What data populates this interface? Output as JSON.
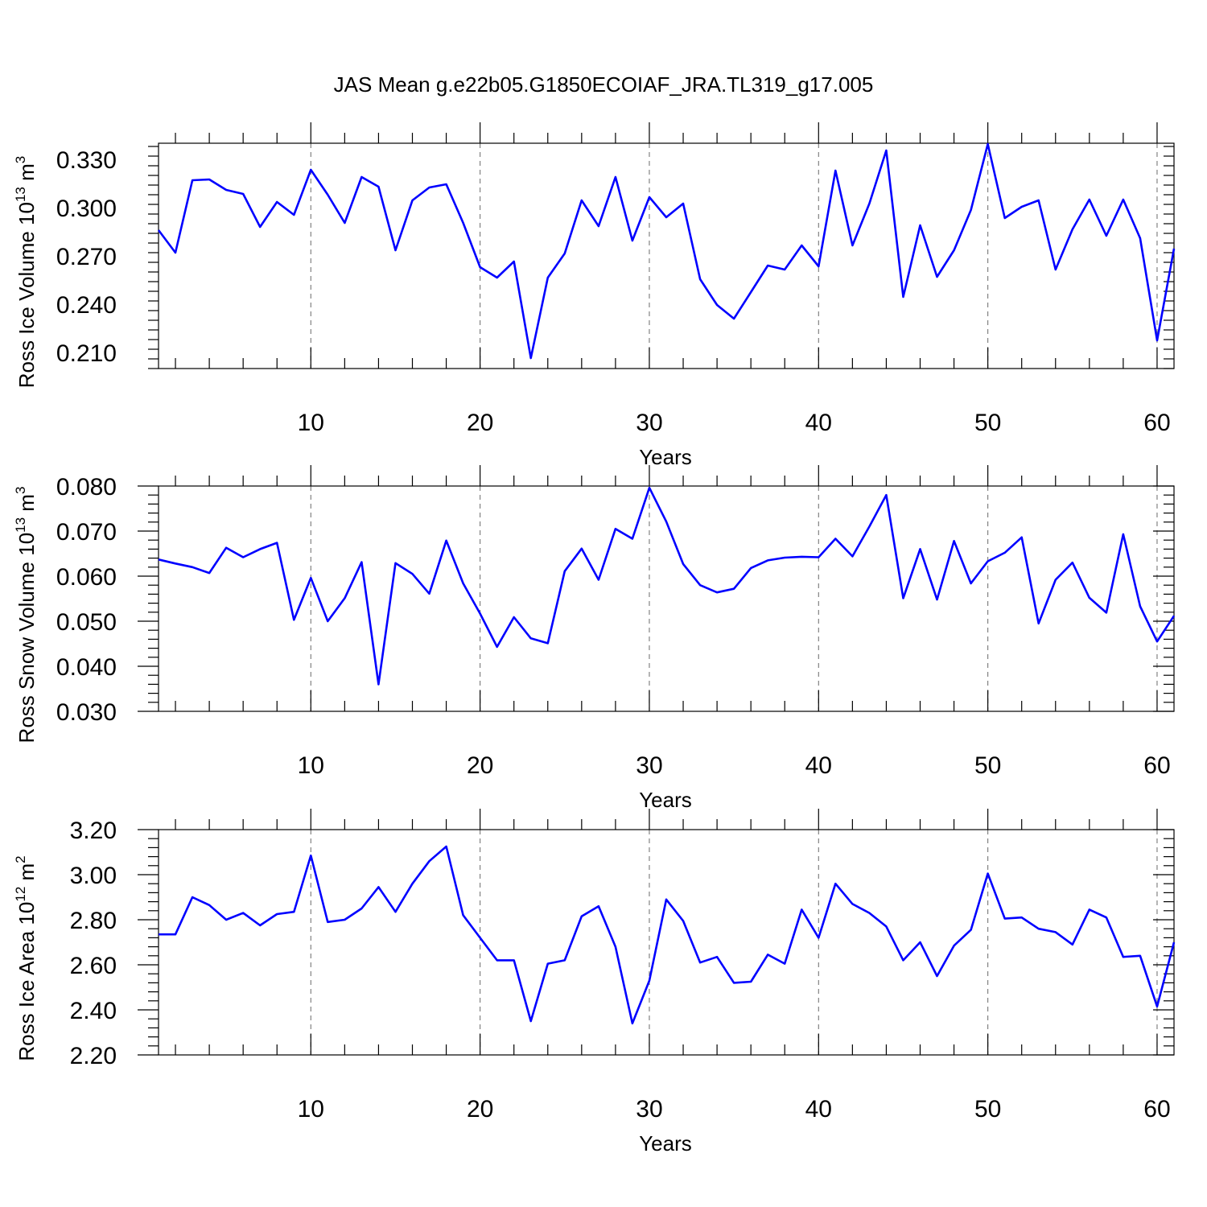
{
  "figure_title": "JAS Mean g.e22b05.G1850ECOIAF_JRA.TL319_g17.005",
  "chart_data": [
    {
      "type": "line",
      "name": "ross-ice-volume",
      "ylabel_main": "Ross Ice Volume 10",
      "ylabel_exp": "13",
      "ylabel_unit": " m",
      "ylabel_unit_exp": "3",
      "xlabel": "Years",
      "xlim": [
        1,
        61
      ],
      "ylim": [
        0.2,
        0.34
      ],
      "xticks": [
        10,
        20,
        30,
        40,
        50,
        60
      ],
      "xtick_labels": [
        "10",
        "20",
        "30",
        "40",
        "50",
        "60"
      ],
      "yticks": [
        0.21,
        0.24,
        0.27,
        0.3,
        0.33
      ],
      "ytick_labels": [
        "0.210",
        "0.240",
        "0.270",
        "0.300",
        "0.330"
      ],
      "x_start": 1,
      "series": [
        {
          "name": "Ross Ice Volume",
          "color": "#0000ff",
          "values": [
            0.286,
            0.272,
            0.317,
            0.3175,
            0.311,
            0.3085,
            0.288,
            0.3035,
            0.2955,
            0.3235,
            0.308,
            0.2905,
            0.319,
            0.313,
            0.2735,
            0.3045,
            0.3125,
            0.3145,
            0.2905,
            0.263,
            0.2565,
            0.2665,
            0.2065,
            0.2565,
            0.2715,
            0.3045,
            0.2885,
            0.319,
            0.2795,
            0.3065,
            0.294,
            0.3025,
            0.2555,
            0.2395,
            0.231,
            0.2475,
            0.264,
            0.2615,
            0.2765,
            0.2635,
            0.323,
            0.2765,
            0.3025,
            0.3355,
            0.2445,
            0.289,
            0.257,
            0.2735,
            0.2985,
            0.3395,
            0.2935,
            0.3005,
            0.3045,
            0.2615,
            0.2865,
            0.305,
            0.2825,
            0.305,
            0.281,
            0.2175,
            0.2745
          ]
        }
      ]
    },
    {
      "type": "line",
      "name": "ross-snow-volume",
      "ylabel_main": "Ross Snow Volume 10",
      "ylabel_exp": "13",
      "ylabel_unit": " m",
      "ylabel_unit_exp": "3",
      "xlabel": "Years",
      "xlim": [
        1,
        61
      ],
      "ylim": [
        0.03,
        0.08
      ],
      "xticks": [
        10,
        20,
        30,
        40,
        50,
        60
      ],
      "xtick_labels": [
        "10",
        "20",
        "30",
        "40",
        "50",
        "60"
      ],
      "yticks": [
        0.03,
        0.04,
        0.05,
        0.06,
        0.07,
        0.08
      ],
      "ytick_labels": [
        "0.030",
        "0.040",
        "0.050",
        "0.060",
        "0.070",
        "0.080"
      ],
      "x_start": 1,
      "series": [
        {
          "name": "Ross Snow Volume",
          "color": "#0000ff",
          "values": [
            0.0637,
            0.0628,
            0.062,
            0.0607,
            0.0663,
            0.0642,
            0.066,
            0.0674,
            0.0503,
            0.0596,
            0.05,
            0.0551,
            0.0631,
            0.036,
            0.0629,
            0.0605,
            0.0561,
            0.0679,
            0.0584,
            0.0517,
            0.0443,
            0.0509,
            0.0462,
            0.0451,
            0.0611,
            0.0661,
            0.0592,
            0.0705,
            0.0683,
            0.0796,
            0.0721,
            0.0627,
            0.058,
            0.0564,
            0.0572,
            0.0618,
            0.0635,
            0.0641,
            0.0643,
            0.0642,
            0.0683,
            0.0644,
            0.071,
            0.078,
            0.0551,
            0.066,
            0.0548,
            0.0678,
            0.0584,
            0.0633,
            0.0652,
            0.0686,
            0.0495,
            0.0592,
            0.063,
            0.0552,
            0.0519,
            0.0693,
            0.0533,
            0.0455,
            0.0512
          ]
        }
      ]
    },
    {
      "type": "line",
      "name": "ross-ice-area",
      "ylabel_main": "Ross Ice Area 10",
      "ylabel_exp": "12",
      "ylabel_unit": " m",
      "ylabel_unit_exp": "2",
      "xlabel": "Years",
      "xlim": [
        1,
        61
      ],
      "ylim": [
        2.2,
        3.2
      ],
      "xticks": [
        10,
        20,
        30,
        40,
        50,
        60
      ],
      "xtick_labels": [
        "10",
        "20",
        "30",
        "40",
        "50",
        "60"
      ],
      "yticks": [
        2.2,
        2.4,
        2.6,
        2.8,
        3.0,
        3.2
      ],
      "ytick_labels": [
        "2.20",
        "2.40",
        "2.60",
        "2.80",
        "3.00",
        "3.20"
      ],
      "x_start": 1,
      "series": [
        {
          "name": "Ross Ice Area",
          "color": "#0000ff",
          "values": [
            2.735,
            2.735,
            2.9,
            2.865,
            2.8,
            2.83,
            2.775,
            2.825,
            2.835,
            3.085,
            2.79,
            2.8,
            2.85,
            2.945,
            2.835,
            2.96,
            3.06,
            3.125,
            2.82,
            2.72,
            2.62,
            2.62,
            2.35,
            2.605,
            2.62,
            2.815,
            2.86,
            2.68,
            2.34,
            2.53,
            2.89,
            2.795,
            2.61,
            2.635,
            2.52,
            2.525,
            2.645,
            2.605,
            2.845,
            2.72,
            2.96,
            2.87,
            2.83,
            2.77,
            2.62,
            2.7,
            2.55,
            2.685,
            2.755,
            3.005,
            2.805,
            2.81,
            2.76,
            2.745,
            2.69,
            2.845,
            2.81,
            2.635,
            2.64,
            2.415,
            2.7
          ]
        }
      ]
    }
  ]
}
